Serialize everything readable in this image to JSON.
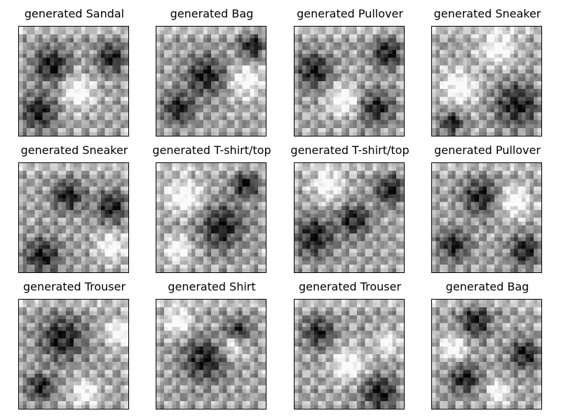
{
  "figure": {
    "panels": [
      {
        "title": "generated Sandal",
        "dark_blobs": [
          [
            0.18,
            0.78,
            0.16
          ],
          [
            0.85,
            0.28,
            0.14
          ],
          [
            0.3,
            0.35,
            0.16
          ]
        ],
        "light_blobs": [
          [
            0.55,
            0.6,
            0.14
          ]
        ]
      },
      {
        "title": "generated Bag",
        "dark_blobs": [
          [
            0.45,
            0.45,
            0.18
          ],
          [
            0.88,
            0.18,
            0.12
          ],
          [
            0.2,
            0.75,
            0.14
          ]
        ],
        "light_blobs": [
          [
            0.82,
            0.5,
            0.14
          ]
        ]
      },
      {
        "title": "generated Pullover",
        "dark_blobs": [
          [
            0.18,
            0.4,
            0.16
          ],
          [
            0.85,
            0.25,
            0.14
          ],
          [
            0.75,
            0.75,
            0.15
          ]
        ],
        "light_blobs": [
          [
            0.45,
            0.68,
            0.14
          ]
        ]
      },
      {
        "title": "generated Sneaker",
        "dark_blobs": [
          [
            0.78,
            0.72,
            0.2
          ],
          [
            0.18,
            0.88,
            0.1
          ]
        ],
        "light_blobs": [
          [
            0.25,
            0.55,
            0.16
          ],
          [
            0.6,
            0.2,
            0.15
          ]
        ]
      },
      {
        "title": "generated Sneaker",
        "dark_blobs": [
          [
            0.22,
            0.85,
            0.16
          ],
          [
            0.85,
            0.4,
            0.14
          ],
          [
            0.45,
            0.3,
            0.14
          ]
        ],
        "light_blobs": [
          [
            0.85,
            0.78,
            0.12
          ]
        ]
      },
      {
        "title": "generated T-shirt/top",
        "dark_blobs": [
          [
            0.6,
            0.58,
            0.2
          ],
          [
            0.82,
            0.2,
            0.12
          ]
        ],
        "light_blobs": [
          [
            0.25,
            0.3,
            0.16
          ],
          [
            0.2,
            0.8,
            0.12
          ]
        ]
      },
      {
        "title": "generated T-shirt/top",
        "dark_blobs": [
          [
            0.18,
            0.68,
            0.18
          ],
          [
            0.88,
            0.25,
            0.14
          ],
          [
            0.55,
            0.52,
            0.14
          ]
        ],
        "light_blobs": [
          [
            0.3,
            0.2,
            0.14
          ]
        ]
      },
      {
        "title": "generated Pullover",
        "dark_blobs": [
          [
            0.2,
            0.75,
            0.14
          ],
          [
            0.45,
            0.3,
            0.16
          ],
          [
            0.85,
            0.8,
            0.14
          ]
        ],
        "light_blobs": [
          [
            0.75,
            0.35,
            0.14
          ]
        ]
      },
      {
        "title": "generated Trouser",
        "dark_blobs": [
          [
            0.4,
            0.35,
            0.2
          ],
          [
            0.2,
            0.8,
            0.12
          ]
        ],
        "light_blobs": [
          [
            0.92,
            0.3,
            0.12
          ],
          [
            0.6,
            0.85,
            0.12
          ]
        ]
      },
      {
        "title": "generated Shirt",
        "dark_blobs": [
          [
            0.45,
            0.55,
            0.2
          ],
          [
            0.75,
            0.3,
            0.12
          ]
        ],
        "light_blobs": [
          [
            0.7,
            0.42,
            0.12
          ],
          [
            0.2,
            0.2,
            0.12
          ]
        ]
      },
      {
        "title": "generated Trouser",
        "dark_blobs": [
          [
            0.78,
            0.85,
            0.16
          ],
          [
            0.22,
            0.3,
            0.14
          ]
        ],
        "light_blobs": [
          [
            0.5,
            0.6,
            0.14
          ],
          [
            0.85,
            0.4,
            0.1
          ]
        ]
      },
      {
        "title": "generated Bag",
        "dark_blobs": [
          [
            0.85,
            0.5,
            0.14
          ],
          [
            0.4,
            0.2,
            0.14
          ],
          [
            0.3,
            0.72,
            0.14
          ]
        ],
        "light_blobs": [
          [
            0.2,
            0.45,
            0.12
          ],
          [
            0.6,
            0.85,
            0.1
          ]
        ]
      }
    ],
    "colors": {
      "frame": "#000000",
      "background": "#ffffff"
    }
  }
}
